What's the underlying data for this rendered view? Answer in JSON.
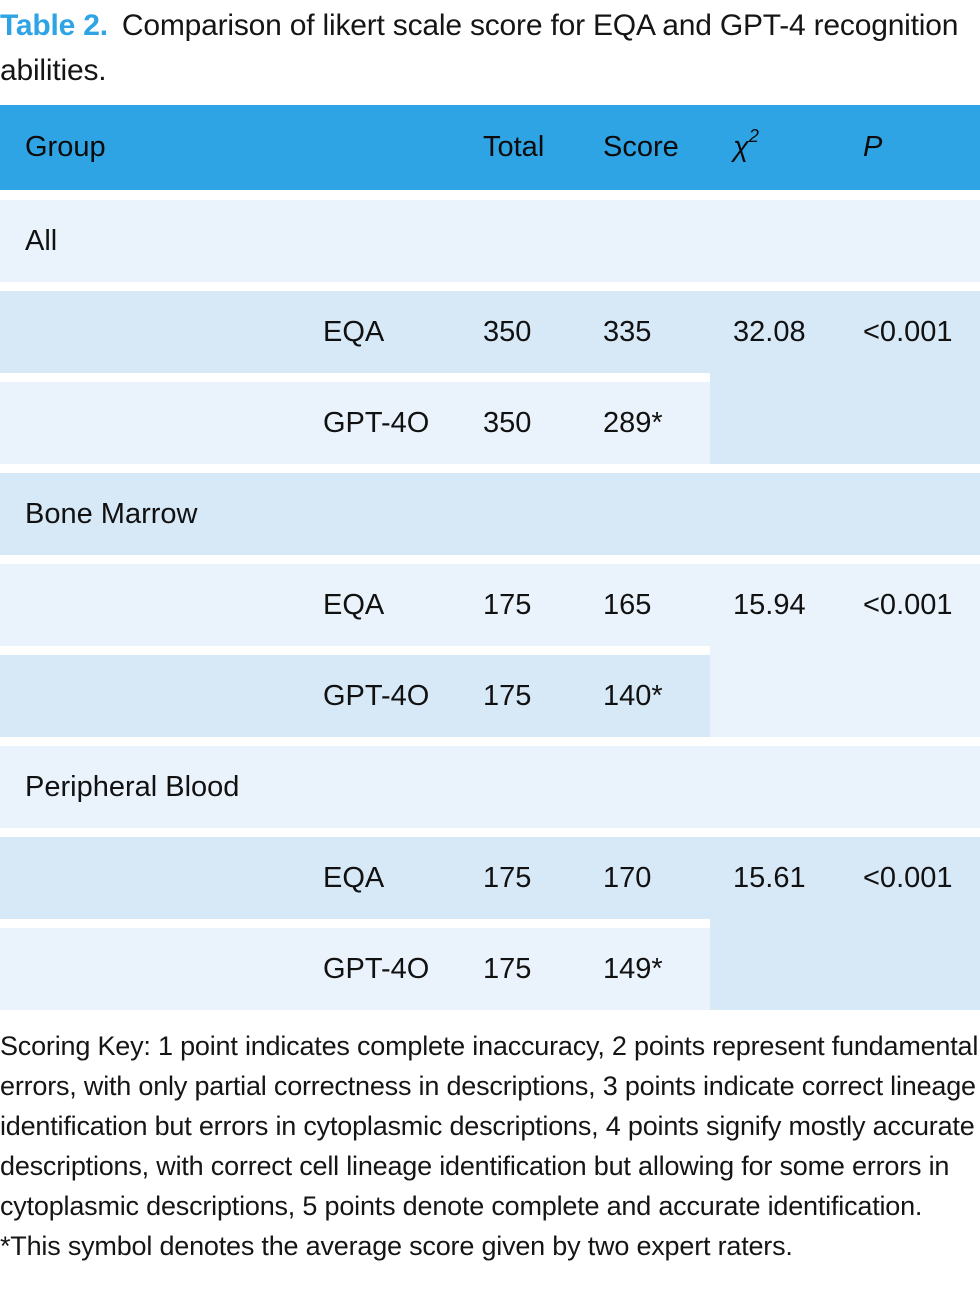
{
  "title": {
    "label": "Table 2.",
    "text": "Comparison of likert scale score for EQA and GPT-4 recognition abilities."
  },
  "colors": {
    "accent_blue": "#2FA4E5",
    "row_dark_blue": "#D7E8F7",
    "row_light_blue": "#EAF3FB",
    "text": "#111111"
  },
  "table": {
    "header": {
      "group": "Group",
      "total": "Total",
      "score": "Score",
      "chi_base": "χ",
      "chi_sup": "2",
      "p": "P"
    },
    "sections": [
      {
        "group": "All",
        "rows": [
          {
            "method": "EQA",
            "total": "350",
            "score": "335",
            "chi": "32.08",
            "p": "<0.001"
          },
          {
            "method": "GPT-4O",
            "total": "350",
            "score": "289*"
          }
        ]
      },
      {
        "group": "Bone Marrow",
        "rows": [
          {
            "method": "EQA",
            "total": "175",
            "score": "165",
            "chi": "15.94",
            "p": "<0.001"
          },
          {
            "method": "GPT-4O",
            "total": "175",
            "score": "140*"
          }
        ]
      },
      {
        "group": "Peripheral Blood",
        "rows": [
          {
            "method": "EQA",
            "total": "175",
            "score": "170",
            "chi": "15.61",
            "p": "<0.001"
          },
          {
            "method": "GPT-4O",
            "total": "175",
            "score": "149*"
          }
        ]
      }
    ]
  },
  "notes": {
    "scoring_key": "Scoring Key: 1 point indicates complete inaccuracy, 2 points represent fundamental errors, with only partial correctness in descriptions, 3 points indicate correct lineage identification but errors in cytoplasmic descriptions, 4 points signify mostly accurate descriptions, with correct cell lineage identification but allowing for some errors in cytoplasmic descriptions, 5 points denote complete and accurate identification.",
    "asterisk_note": "*This symbol denotes the average score given by two expert raters."
  }
}
